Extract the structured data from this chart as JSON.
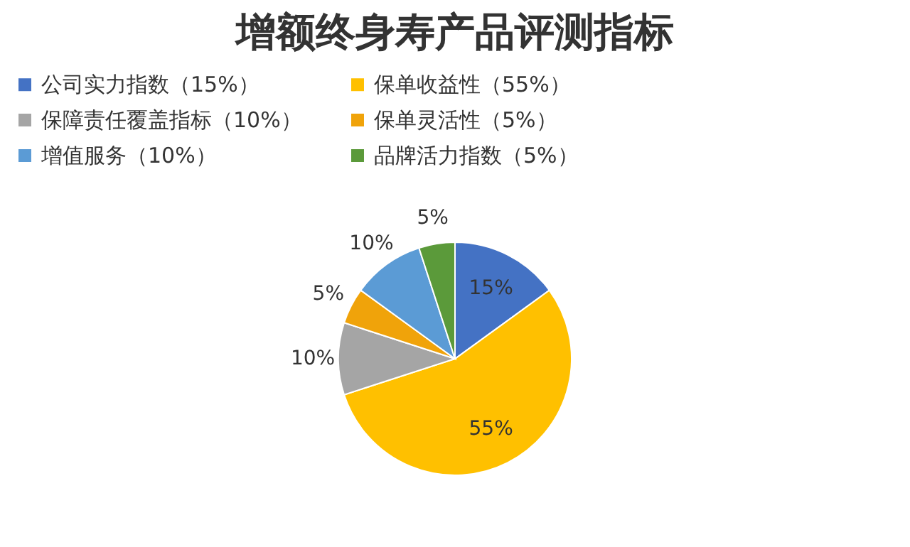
{
  "chart_data": {
    "type": "pie",
    "title": "增额终身寿产品评测指标",
    "categories": [
      "公司实力指数（15%）",
      "保单收益性（55%）",
      "保障责任覆盖指标（10%）",
      "保单灵活性（5%）",
      "增值服务（10%）",
      "品牌活力指数（5%）"
    ],
    "values": [
      15,
      55,
      10,
      5,
      10,
      5
    ],
    "colors": [
      "#4472c4",
      "#ffc000",
      "#a5a5a5",
      "#f0a30a",
      "#5b9bd5",
      "#5b9a3a"
    ],
    "value_labels": [
      "15%",
      "55%",
      "10%",
      "5%",
      "10%",
      "5%"
    ],
    "legend": "top"
  }
}
